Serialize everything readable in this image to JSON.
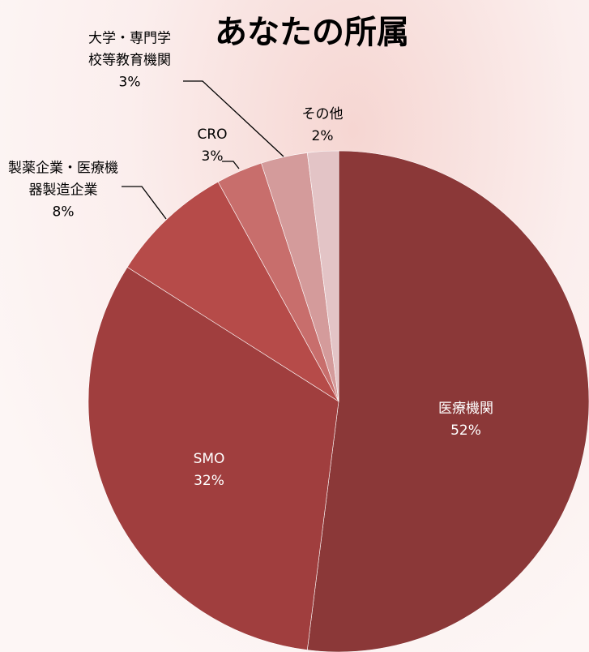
{
  "chart_data": {
    "type": "pie",
    "title": "あなたの所属",
    "categories": [
      "医療機関",
      "SMO",
      "製薬企業・医療機器製造企業",
      "CRO",
      "大学・専門学校等教育機関",
      "その他"
    ],
    "values": [
      52,
      32,
      8,
      3,
      3,
      2
    ],
    "value_labels": [
      "52%",
      "32%",
      "8%",
      "3%",
      "3%",
      "2%"
    ],
    "colors": [
      "#8b3838",
      "#a03e3e",
      "#b64b49",
      "#c86e6c",
      "#d49b9b",
      "#e3c4c6"
    ]
  }
}
